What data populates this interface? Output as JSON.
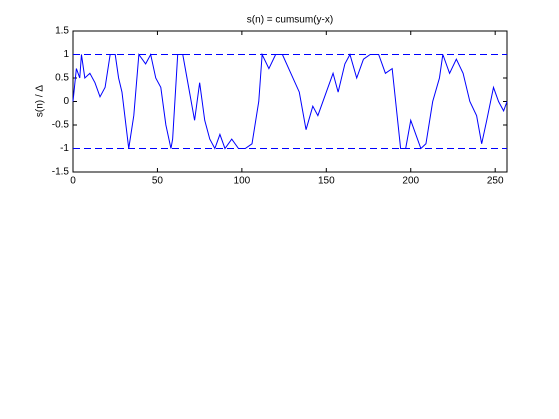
{
  "chart_data": {
    "type": "line",
    "title": "s(n) = cumsum(y-x)",
    "y_label": "s(n) / Δ",
    "x": [
      0,
      2,
      4,
      5,
      7,
      10,
      13,
      16,
      19,
      22,
      25,
      27,
      29,
      33,
      36,
      39,
      43,
      46,
      49,
      52,
      55,
      58,
      59,
      62,
      65,
      69,
      72,
      75,
      78,
      81,
      84,
      87,
      90,
      94,
      98,
      102,
      106,
      110,
      112,
      116,
      120,
      124,
      129,
      134,
      138,
      142,
      145,
      150,
      154,
      157,
      161,
      164,
      168,
      172,
      176,
      181,
      185,
      189,
      194,
      197,
      200,
      203,
      206,
      209,
      213,
      217,
      219,
      223,
      227,
      231,
      235,
      239,
      242,
      245,
      249,
      252,
      255,
      257
    ],
    "series": [
      {
        "name": "s(n)",
        "color": "#0000ff",
        "values": [
          0,
          0.7,
          0.5,
          1,
          0.5,
          0.6,
          0.4,
          0.1,
          0.3,
          1,
          1,
          0.5,
          0.2,
          -1,
          -0.3,
          1,
          0.8,
          1,
          0.5,
          0.3,
          -0.5,
          -1,
          -0.8,
          1,
          1,
          0.2,
          -0.4,
          0.4,
          -0.4,
          -0.8,
          -1,
          -0.7,
          -1,
          -0.8,
          -1,
          -1,
          -0.9,
          0,
          1,
          0.7,
          1,
          1,
          0.6,
          0.2,
          -0.6,
          -0.1,
          -0.3,
          0.2,
          0.6,
          0.2,
          0.8,
          1,
          0.5,
          0.9,
          1,
          1,
          0.6,
          0.7,
          -1,
          -1,
          -0.4,
          -0.7,
          -1,
          -0.9,
          0,
          0.5,
          1,
          0.6,
          0.9,
          0.6,
          0,
          -0.3,
          -0.9,
          -0.4,
          0.3,
          0,
          -0.2,
          0
        ]
      }
    ],
    "reference_lines": [
      1,
      -1
    ],
    "reference_color": "#0000ff",
    "xlim": [
      0,
      257
    ],
    "ylim": [
      -1.5,
      1.5
    ],
    "xticks": [
      0,
      50,
      100,
      150,
      200,
      250
    ],
    "yticks": [
      -1.5,
      -1,
      -0.5,
      0,
      0.5,
      1,
      1.5
    ]
  }
}
